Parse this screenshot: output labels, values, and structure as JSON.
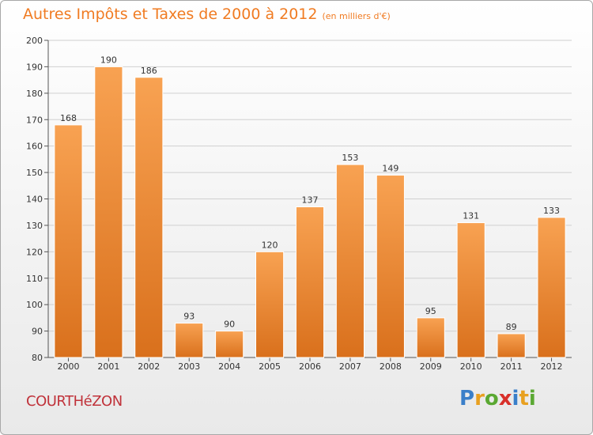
{
  "chart_data": {
    "type": "bar",
    "title": "Autres Impôts et Taxes de 2000 à 2012",
    "subtitle": "(en milliers d'€)",
    "categories": [
      "2000",
      "2001",
      "2002",
      "2003",
      "2004",
      "2005",
      "2006",
      "2007",
      "2008",
      "2009",
      "2010",
      "2011",
      "2012"
    ],
    "values": [
      168,
      190,
      186,
      93,
      90,
      120,
      137,
      153,
      149,
      95,
      131,
      89,
      133
    ],
    "ylim": [
      80,
      200
    ],
    "yticks": [
      80,
      90,
      100,
      110,
      120,
      130,
      140,
      150,
      160,
      170,
      180,
      190,
      200
    ],
    "grid": true,
    "bar_color": "#f08a30"
  },
  "commune": "COURTHéZON",
  "logo": {
    "letters": [
      "P",
      "r",
      "o",
      "x",
      "i",
      "t",
      "i"
    ],
    "colors": [
      "#3a7fc9",
      "#e8a020",
      "#5aa832",
      "#d8302a",
      "#3a7fc9",
      "#e8a020",
      "#5aa832"
    ]
  }
}
